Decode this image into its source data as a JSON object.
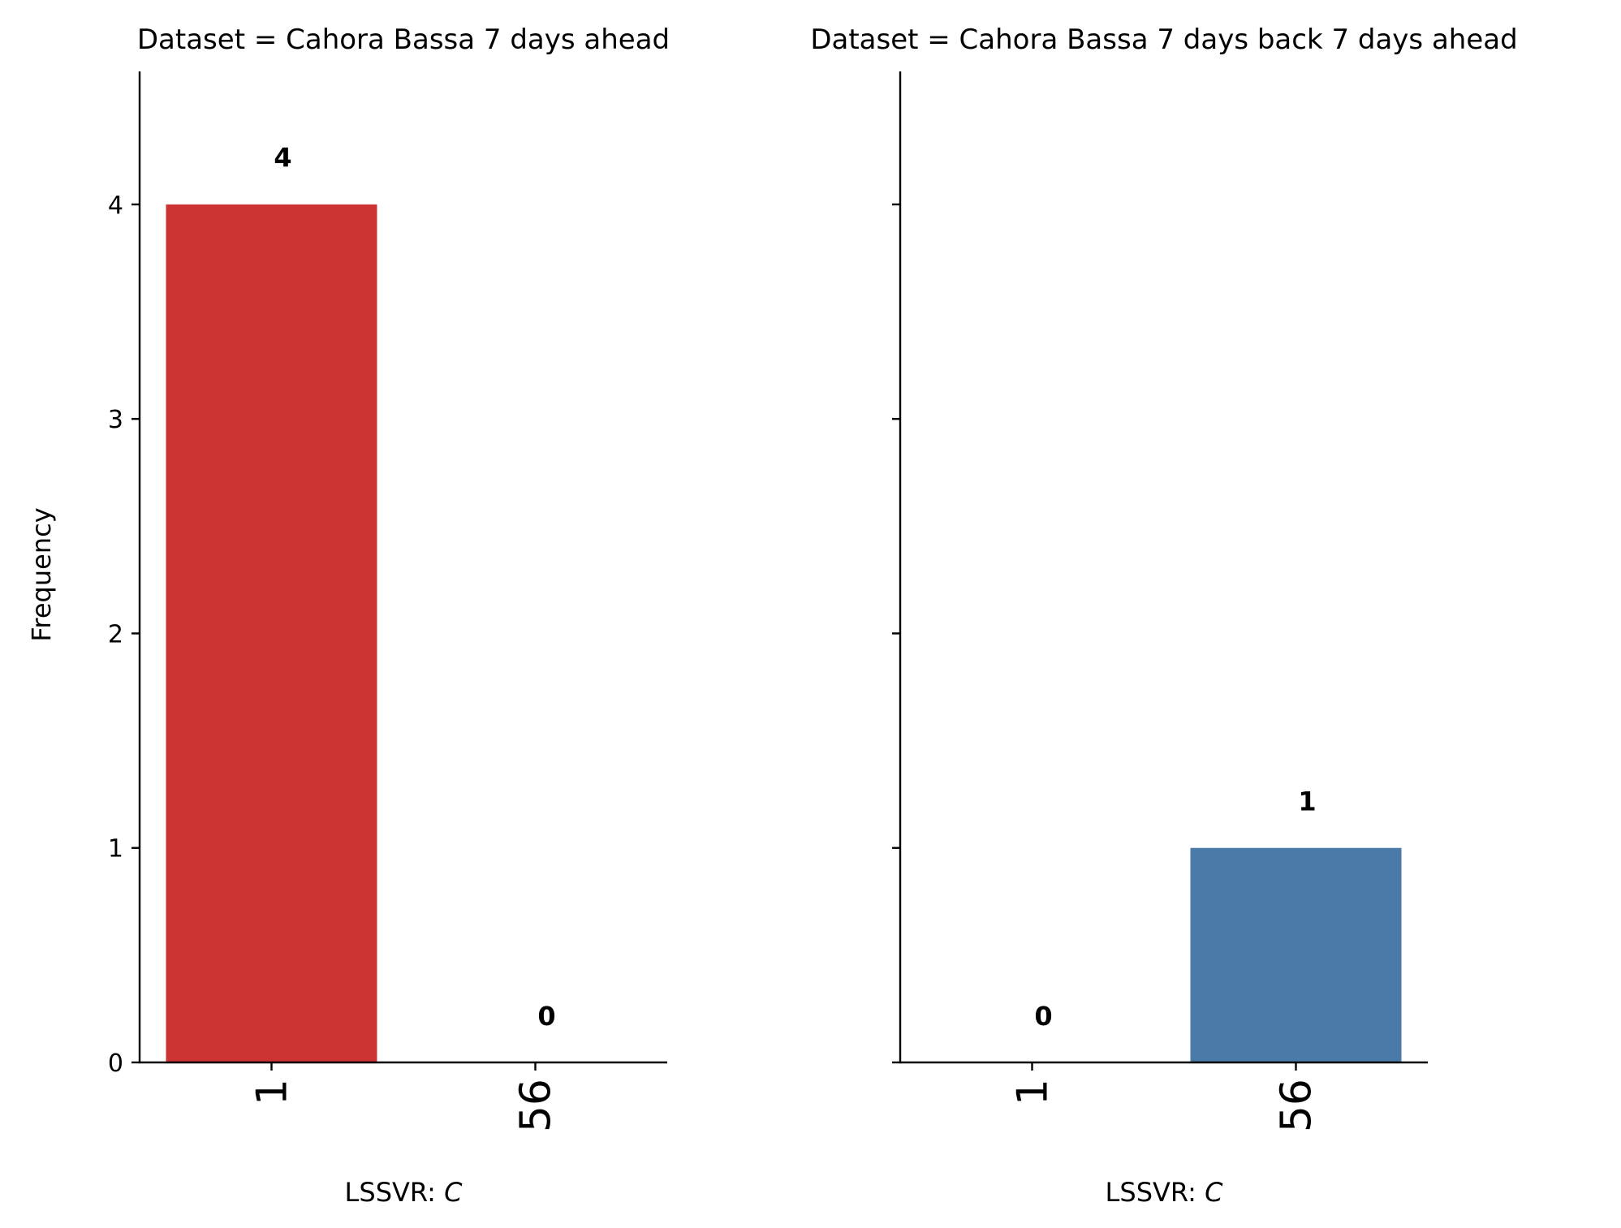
{
  "chart_data": [
    {
      "type": "bar",
      "title": "Dataset = Cahora Bassa 7 days ahead",
      "categories": [
        "1",
        "56"
      ],
      "values": [
        4,
        0
      ],
      "value_labels": [
        "4",
        "0"
      ],
      "color": "#cc3333",
      "xlabel_prefix": "LSSVR: ",
      "xlabel_var": "C",
      "ylabel": "Frequency",
      "ylim": [
        0,
        4.62
      ],
      "yticks": [
        "0",
        "1",
        "2",
        "3",
        "4"
      ],
      "grid": false
    },
    {
      "type": "bar",
      "title": "Dataset = Cahora Bassa 7 days back 7 days ahead",
      "categories": [
        "1",
        "56"
      ],
      "values": [
        0,
        1
      ],
      "value_labels": [
        "0",
        "1"
      ],
      "color": "#4a7ba8",
      "xlabel_prefix": "LSSVR: ",
      "xlabel_var": "C",
      "ylabel": "",
      "ylim": [
        0,
        4.62
      ],
      "yticks": [
        "0",
        "1",
        "2",
        "3",
        "4"
      ],
      "grid": false
    }
  ]
}
